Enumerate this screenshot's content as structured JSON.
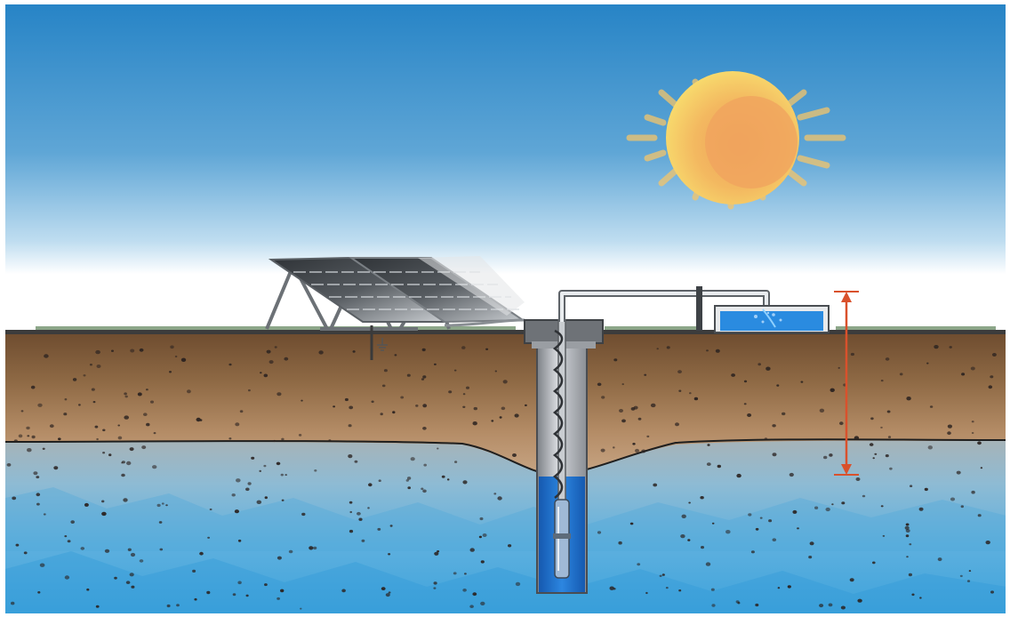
{
  "scene": {
    "labels": [],
    "elements": {
      "sun": "sun-icon",
      "solar_panel": "solar-panel-array",
      "well": "well-casing",
      "pump": "submersible-pump",
      "pipe": "delivery-pipe",
      "tank": "storage-tank",
      "arrow": "head-height-arrow",
      "water_table": "water-table-line",
      "ground_symbol": "ground-symbol-icon"
    }
  },
  "colors": {
    "sky_top": "#2B87C8",
    "sky_horizon": "#FFFFFF",
    "soil_top": "#6B4A2E",
    "soil_mid": "#A07A55",
    "soil_low": "#C9A27E",
    "groundwater": "#6FB6DF",
    "groundwater_deep": "#3FA0D8",
    "sun_outer": "#F7D46A",
    "sun_inner": "#F2A65A",
    "well_water": "#1F6FC9",
    "tank_water": "#2A8BE0",
    "arrow": "#D9512C"
  }
}
